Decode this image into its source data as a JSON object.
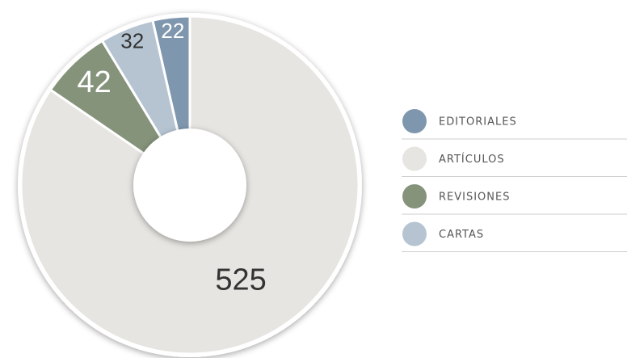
{
  "chart_data": {
    "type": "donut",
    "categories": [
      "EDITORIALES",
      "ARTÍCULOS",
      "REVISIONES",
      "CARTAS"
    ],
    "values": [
      22,
      525,
      42,
      32
    ],
    "colors": [
      "#7f97ae",
      "#e7e5e1",
      "#85937b",
      "#b6c4d2"
    ],
    "label_colors": [
      "#ffffff",
      "#333333",
      "#ffffff",
      "#333333"
    ],
    "legend": "right"
  }
}
